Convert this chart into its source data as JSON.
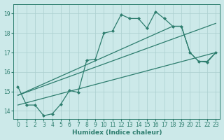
{
  "xlabel": "Humidex (Indice chaleur)",
  "xlim": [
    -0.5,
    23.5
  ],
  "ylim": [
    13.6,
    19.5
  ],
  "bg_color": "#cce9e9",
  "line_color": "#2d7d6e",
  "grid_color": "#aacfcf",
  "series": [
    {
      "x": [
        0,
        1,
        2,
        3,
        4,
        5,
        6,
        7,
        8,
        9,
        10,
        11,
        12,
        13,
        14,
        15,
        16,
        17,
        18,
        19,
        20,
        21,
        22,
        23
      ],
      "y": [
        15.25,
        14.3,
        14.3,
        13.75,
        13.85,
        14.35,
        15.05,
        14.95,
        16.6,
        16.65,
        18.0,
        18.1,
        18.95,
        18.75,
        18.75,
        18.25,
        19.1,
        18.75,
        18.35,
        18.35,
        17.0,
        16.55,
        16.5,
        17.0
      ],
      "marker": "D",
      "markersize": 2.0,
      "linewidth": 0.9
    },
    {
      "x": [
        0,
        18,
        19,
        20,
        21,
        22,
        23
      ],
      "y": [
        14.8,
        18.35,
        18.35,
        17.0,
        16.55,
        16.55,
        17.0
      ],
      "marker": null,
      "markersize": 0,
      "linewidth": 0.9
    },
    {
      "x": [
        0,
        23
      ],
      "y": [
        14.8,
        18.5
      ],
      "marker": null,
      "markersize": 0,
      "linewidth": 0.9
    },
    {
      "x": [
        0,
        23
      ],
      "y": [
        14.3,
        17.0
      ],
      "marker": null,
      "markersize": 0,
      "linewidth": 0.9
    }
  ],
  "xticks": [
    0,
    1,
    2,
    3,
    4,
    5,
    6,
    7,
    8,
    9,
    10,
    11,
    12,
    13,
    14,
    15,
    16,
    17,
    18,
    19,
    20,
    21,
    22,
    23
  ],
  "yticks": [
    14,
    15,
    16,
    17,
    18,
    19
  ],
  "tick_fontsize": 5.5,
  "label_fontsize": 6.5
}
